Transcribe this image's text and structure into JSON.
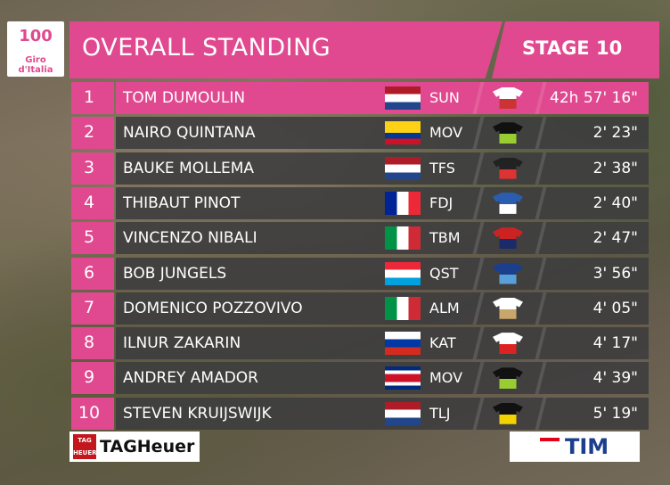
{
  "header": {
    "logo_number": "100",
    "logo_text": "Giro d'Italia",
    "title": "OVERALL STANDING",
    "stage": "STAGE 10"
  },
  "table": {
    "rows": [
      {
        "rank": 1,
        "rider": "TOM DUMOULIN",
        "team": "SUN",
        "time": "42h 57' 16\""
      },
      {
        "rank": 2,
        "rider": "NAIRO QUINTANA",
        "team": "MOV",
        "time": "2' 23\""
      },
      {
        "rank": 3,
        "rider": "BAUKE MOLLEMA",
        "team": "TFS",
        "time": "2' 38\""
      },
      {
        "rank": 4,
        "rider": "THIBAUT PINOT",
        "team": "FDJ",
        "time": "2' 40\""
      },
      {
        "rank": 5,
        "rider": "VINCENZO NIBALI",
        "team": "TBM",
        "time": "2' 47\""
      },
      {
        "rank": 6,
        "rider": "BOB JUNGELS",
        "team": "QST",
        "time": "3' 56\""
      },
      {
        "rank": 7,
        "rider": "DOMENICO POZZOVIVO",
        "team": "ALM",
        "time": "4' 05\""
      },
      {
        "rank": 8,
        "rider": "ILNUR ZAKARIN",
        "team": "KAT",
        "time": "4' 17\""
      },
      {
        "rank": 9,
        "rider": "ANDREY AMADOR",
        "team": "MOV",
        "time": "4' 39\""
      },
      {
        "rank": 10,
        "rider": "STEVEN KRUIJSWIJK",
        "team": "TLJ",
        "time": "5' 19\""
      }
    ]
  },
  "sponsors": {
    "tag_badge": "TAG HEUER",
    "tag": "TAGHeuer",
    "tim": "TIM"
  }
}
